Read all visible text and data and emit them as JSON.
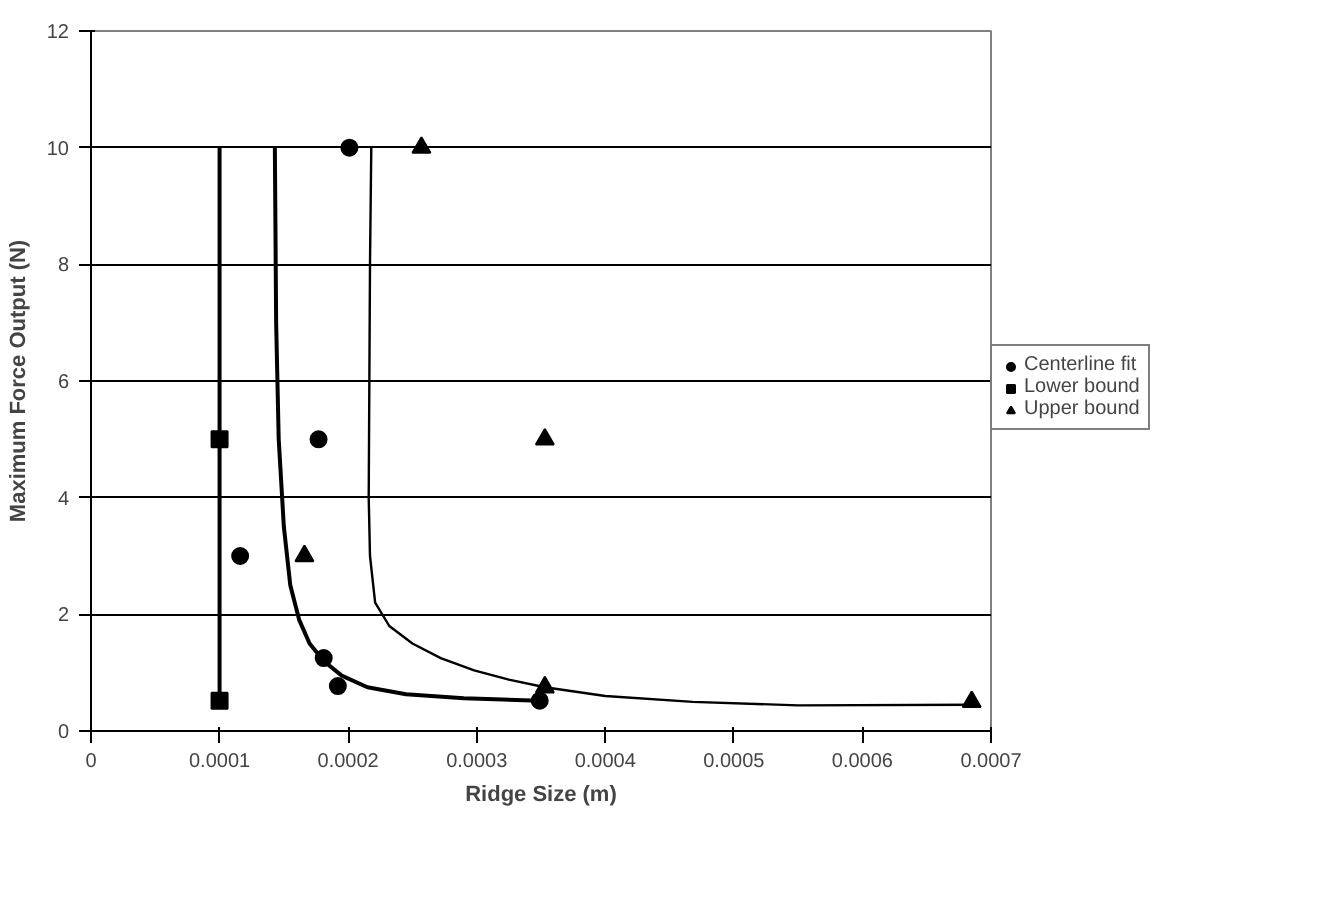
{
  "chart_data": {
    "type": "scatter",
    "xlabel": "Ridge Size (m)",
    "ylabel": "Maximum Force Output (N)",
    "xlim": [
      0,
      0.0007
    ],
    "xticks": [
      0,
      0.0001,
      0.0002,
      0.0003,
      0.0004,
      0.0005,
      0.0006,
      0.0007
    ],
    "ylim": [
      0,
      12
    ],
    "yticks": [
      0,
      2,
      4,
      6,
      8,
      10,
      12
    ],
    "grid": "y",
    "legend": "right",
    "series": [
      {
        "type": "line",
        "marker": "none",
        "color": "#000000",
        "x": [
          0.0001,
          0.0001
        ],
        "values": [
          0.5,
          10
        ]
      },
      {
        "type": "line",
        "marker": "none",
        "color": "#000000",
        "x": [
          0.000143,
          0.000144,
          0.000146,
          0.00015,
          0.000155,
          0.000162,
          0.00017,
          0.000181,
          0.000195,
          0.000215,
          0.000245,
          0.00029,
          0.000349
        ],
        "values": [
          10,
          7,
          5,
          3.5,
          2.5,
          1.9,
          1.5,
          1.2,
          0.95,
          0.75,
          0.63,
          0.56,
          0.52
        ]
      },
      {
        "type": "line",
        "marker": "none",
        "color": "#000000",
        "x": [
          0.000218,
          0.000217,
          0.000216,
          0.000217,
          0.000221,
          0.000232,
          0.00025,
          0.000272,
          0.000298,
          0.000325,
          0.000353,
          0.0004,
          0.000468,
          0.00055,
          0.000685
        ],
        "values": [
          10,
          8,
          4,
          3,
          2.2,
          1.8,
          1.5,
          1.25,
          1.04,
          0.88,
          0.75,
          0.6,
          0.5,
          0.44,
          0.45
        ]
      },
      {
        "name": "Centerline fit",
        "marker": "circle",
        "color": "#000000",
        "x": [
          0.000201,
          0.000177,
          0.000116,
          0.000181,
          0.000192,
          0.000349
        ],
        "values": [
          10,
          5,
          3,
          1.25,
          0.77,
          0.52
        ]
      },
      {
        "name": "Lower bound",
        "marker": "square",
        "color": "#000000",
        "x": [
          0.0001,
          0.0001
        ],
        "values": [
          5,
          0.52
        ]
      },
      {
        "name": "Upper bound",
        "marker": "triangle",
        "color": "#000000",
        "x": [
          0.000257,
          0.000166,
          0.000353,
          0.000353,
          0.000685
        ],
        "values": [
          10,
          3,
          5,
          0.75,
          0.5
        ]
      }
    ]
  }
}
